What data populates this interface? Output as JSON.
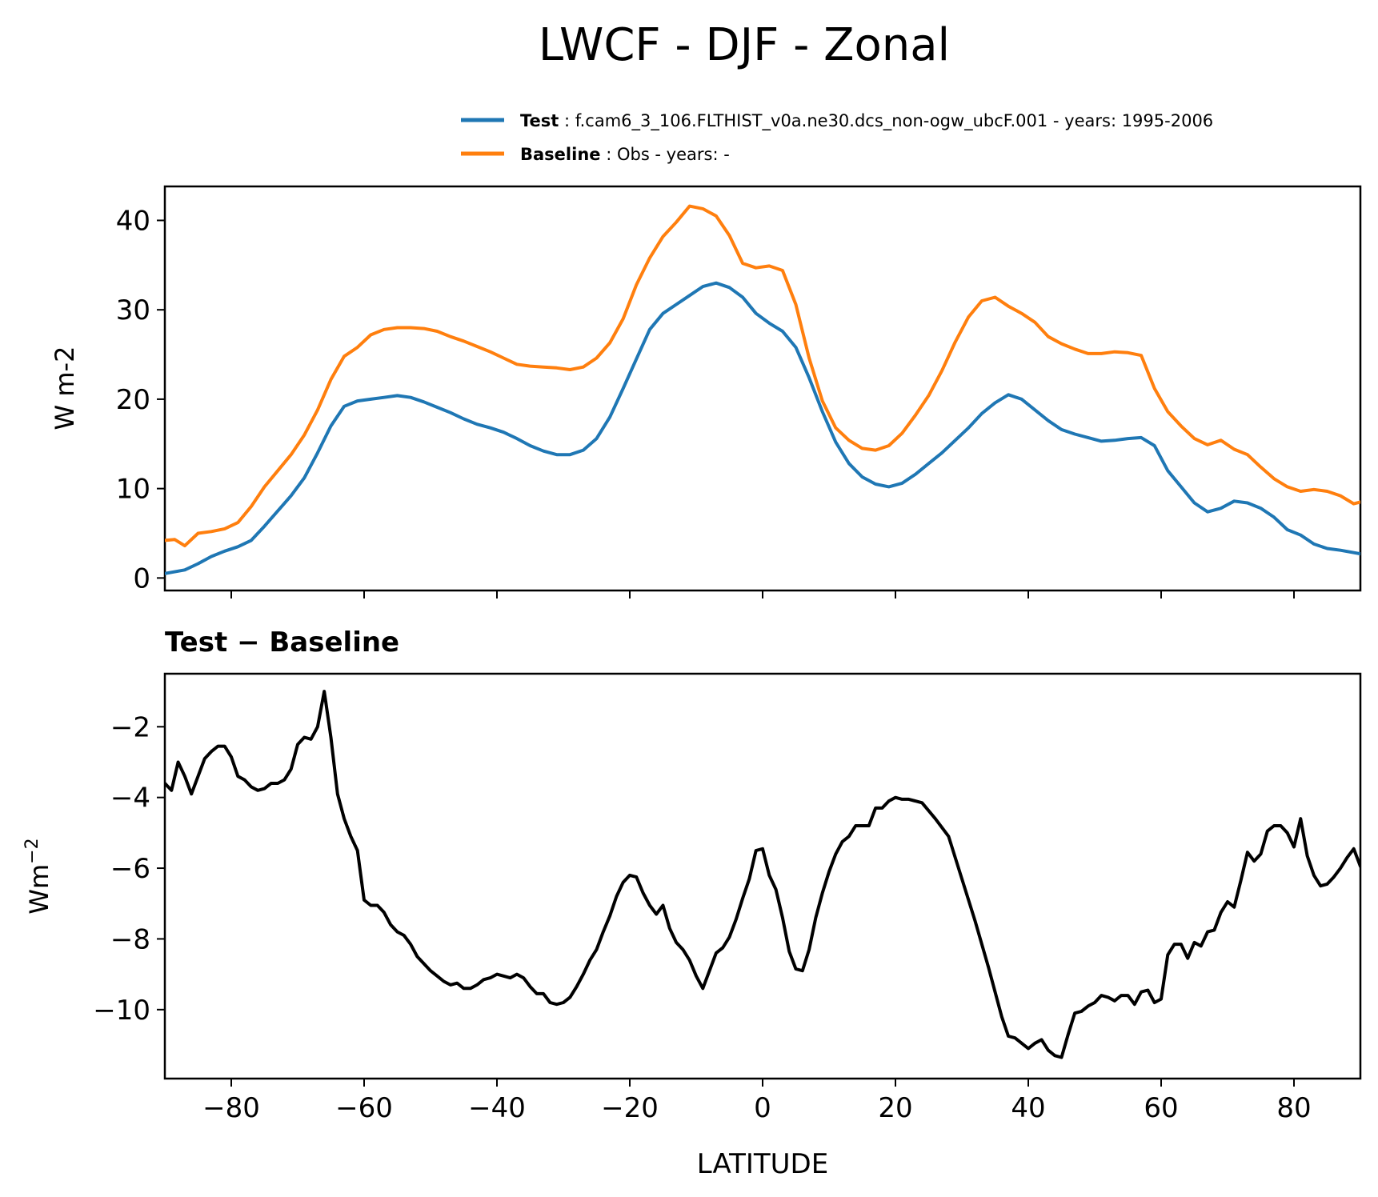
{
  "figure": {
    "title": "LWCF - DJF - Zonal"
  },
  "legend": {
    "test_label": "Test",
    "test_desc": ": f.cam6_3_106.FLTHIST_v0a.ne30.dcs_non-ogw_ubcF.001 - years: 1995-2006",
    "baseline_label": "Baseline",
    "baseline_desc": ": Obs - years: -"
  },
  "colors": {
    "test": "#1f77b4",
    "baseline": "#ff7f0e",
    "diff": "#000000"
  },
  "chart_data": [
    {
      "type": "line",
      "title": "",
      "xlabel": "",
      "ylabel": "W m-2",
      "xlim": [
        -90,
        90
      ],
      "ylim": [
        -1.4,
        43.8
      ],
      "xticks": [
        -80,
        -60,
        -40,
        -20,
        0,
        20,
        40,
        60,
        80
      ],
      "yticks": [
        0,
        10,
        20,
        30,
        40
      ],
      "ytick_labels": [
        "0",
        "10",
        "20",
        "30",
        "40"
      ],
      "series": [
        {
          "name": "Test",
          "x": [
            -90,
            -87,
            -85,
            -83,
            -81,
            -79,
            -77,
            -75,
            -73,
            -71,
            -69,
            -67,
            -65,
            -63,
            -61,
            -59,
            -57,
            -55,
            -53,
            -51,
            -49,
            -47,
            -45,
            -43,
            -41,
            -39,
            -37,
            -35,
            -33,
            -31,
            -29,
            -27,
            -25,
            -23,
            -21,
            -19,
            -17,
            -15,
            -13,
            -11,
            -9,
            -7,
            -5,
            -3,
            -1,
            1,
            3,
            5,
            7,
            9,
            11,
            13,
            15,
            17,
            19,
            21,
            23,
            25,
            27,
            29,
            31,
            33,
            35,
            37,
            39,
            41,
            43,
            45,
            47,
            49,
            51,
            53,
            55,
            57,
            59,
            61,
            63,
            65,
            67,
            69,
            71,
            73,
            75,
            77,
            79,
            81,
            83,
            85,
            87,
            90
          ],
          "values": [
            0.5,
            0.9,
            1.6,
            2.4,
            3.0,
            3.5,
            4.2,
            5.8,
            7.5,
            9.2,
            11.2,
            14.0,
            17.0,
            19.2,
            19.8,
            20.0,
            20.2,
            20.4,
            20.2,
            19.7,
            19.1,
            18.5,
            17.8,
            17.2,
            16.8,
            16.3,
            15.6,
            14.8,
            14.2,
            13.8,
            13.8,
            14.3,
            15.6,
            18.0,
            21.2,
            24.5,
            27.8,
            29.6,
            30.6,
            31.6,
            32.6,
            33.0,
            32.5,
            31.4,
            29.6,
            28.5,
            27.6,
            25.8,
            22.4,
            18.6,
            15.2,
            12.8,
            11.3,
            10.5,
            10.2,
            10.6,
            11.6,
            12.8,
            14.0,
            15.4,
            16.8,
            18.4,
            19.6,
            20.5,
            20.0,
            18.8,
            17.6,
            16.6,
            16.1,
            15.7,
            15.3,
            15.4,
            15.6,
            15.7,
            14.8,
            12.0,
            10.2,
            8.4,
            7.4,
            7.8,
            8.6,
            8.4,
            7.8,
            6.8,
            5.4,
            4.8,
            3.8,
            3.3,
            3.1,
            2.7
          ]
        },
        {
          "name": "Baseline",
          "x": [
            -90,
            -88.5,
            -87,
            -85,
            -83,
            -81,
            -79,
            -77,
            -75,
            -73,
            -71,
            -69,
            -67,
            -65,
            -63,
            -61,
            -59,
            -57,
            -55,
            -53,
            -51,
            -49,
            -47,
            -45,
            -43,
            -41,
            -39,
            -37,
            -35,
            -33,
            -31,
            -29,
            -27,
            -25,
            -23,
            -21,
            -19,
            -17,
            -15,
            -13,
            -11,
            -9,
            -7,
            -5,
            -3,
            -1,
            1,
            3,
            5,
            7,
            9,
            11,
            13,
            15,
            17,
            19,
            21,
            23,
            25,
            27,
            29,
            31,
            33,
            35,
            37,
            39,
            41,
            43,
            45,
            47,
            49,
            51,
            53,
            55,
            57,
            59,
            61,
            63,
            65,
            67,
            69,
            71,
            73,
            75,
            77,
            79,
            81,
            83,
            85,
            87,
            89,
            90
          ],
          "values": [
            4.2,
            4.3,
            3.6,
            5.0,
            5.2,
            5.5,
            6.2,
            8.0,
            10.2,
            12.0,
            13.8,
            16.0,
            18.8,
            22.2,
            24.8,
            25.8,
            27.2,
            27.8,
            28.0,
            28.0,
            27.9,
            27.6,
            27.0,
            26.5,
            25.9,
            25.3,
            24.6,
            23.9,
            23.7,
            23.6,
            23.5,
            23.3,
            23.6,
            24.6,
            26.3,
            29.0,
            32.8,
            35.8,
            38.2,
            39.8,
            41.6,
            41.3,
            40.5,
            38.3,
            35.2,
            34.7,
            34.9,
            34.4,
            30.6,
            24.6,
            19.8,
            16.8,
            15.4,
            14.5,
            14.3,
            14.8,
            16.2,
            18.2,
            20.4,
            23.2,
            26.4,
            29.2,
            31.0,
            31.4,
            30.4,
            29.6,
            28.6,
            27.0,
            26.2,
            25.6,
            25.1,
            25.1,
            25.3,
            25.2,
            24.9,
            21.2,
            18.6,
            17.0,
            15.6,
            14.9,
            15.4,
            14.4,
            13.8,
            12.4,
            11.1,
            10.2,
            9.7,
            9.9,
            9.7,
            9.2,
            8.3,
            8.5
          ]
        }
      ]
    },
    {
      "type": "line",
      "title": "Test − Baseline",
      "xlabel": "LATITUDE",
      "ylabel": "Wm",
      "ylabel_sup": "−2",
      "xlim": [
        -90,
        90
      ],
      "ylim": [
        -11.95,
        -0.5
      ],
      "xticks": [
        -80,
        -60,
        -40,
        -20,
        0,
        20,
        40,
        60,
        80
      ],
      "xtick_labels": [
        "−80",
        "−60",
        "−40",
        "−20",
        "0",
        "20",
        "40",
        "60",
        "80"
      ],
      "yticks": [
        -2,
        -4,
        -6,
        -8,
        -10
      ],
      "ytick_labels": [
        "−2",
        "−4",
        "−6",
        "−8",
        "−10"
      ],
      "series": [
        {
          "name": "Test - Baseline",
          "x": [
            -90,
            -89,
            -88,
            -87,
            -86,
            -85,
            -84,
            -83,
            -82,
            -81,
            -80,
            -79,
            -78,
            -77,
            -76,
            -75,
            -74,
            -73,
            -72,
            -71,
            -70,
            -69,
            -68,
            -67,
            -66,
            -65,
            -64,
            -63,
            -62,
            -61,
            -60,
            -59,
            -58,
            -57,
            -56,
            -55,
            -54,
            -53,
            -52,
            -51,
            -50,
            -49,
            -48,
            -47,
            -46,
            -45,
            -44,
            -43,
            -42,
            -41,
            -40,
            -39,
            -38,
            -37,
            -36,
            -35,
            -34,
            -33,
            -32,
            -31,
            -30,
            -29,
            -28,
            -27,
            -26,
            -25,
            -24,
            -23,
            -22,
            -21,
            -20,
            -19,
            -18,
            -17,
            -16,
            -15,
            -14,
            -13,
            -12,
            -11,
            -10,
            -9,
            -8,
            -7,
            -6,
            -5,
            -4,
            -3,
            -2,
            -1,
            0,
            1,
            2,
            3,
            4,
            5,
            6,
            7,
            8,
            9,
            10,
            11,
            12,
            13,
            14,
            15,
            16,
            17,
            18,
            19,
            20,
            21,
            22,
            24,
            26,
            28,
            30,
            32,
            34,
            36,
            37,
            38,
            39,
            40,
            41,
            42,
            43,
            44,
            45,
            46,
            47,
            48,
            49,
            50,
            51,
            52,
            53,
            54,
            55,
            56,
            57,
            58,
            59,
            60,
            61,
            62,
            63,
            64,
            65,
            66,
            67,
            68,
            69,
            70,
            71,
            72,
            73,
            74,
            75,
            76,
            77,
            78,
            79,
            80,
            81,
            82,
            83,
            84,
            85,
            86,
            87,
            88,
            89,
            90
          ],
          "values": [
            -3.6,
            -3.8,
            -3.0,
            -3.4,
            -3.9,
            -3.4,
            -2.9,
            -2.7,
            -2.55,
            -2.55,
            -2.85,
            -3.4,
            -3.5,
            -3.7,
            -3.8,
            -3.75,
            -3.6,
            -3.6,
            -3.5,
            -3.2,
            -2.5,
            -2.3,
            -2.35,
            -2.0,
            -1.0,
            -2.3,
            -3.9,
            -4.6,
            -5.1,
            -5.5,
            -6.9,
            -7.05,
            -7.05,
            -7.25,
            -7.6,
            -7.8,
            -7.9,
            -8.15,
            -8.5,
            -8.7,
            -8.9,
            -9.05,
            -9.2,
            -9.3,
            -9.25,
            -9.4,
            -9.4,
            -9.3,
            -9.15,
            -9.1,
            -9.0,
            -9.05,
            -9.1,
            -9.0,
            -9.1,
            -9.35,
            -9.55,
            -9.55,
            -9.8,
            -9.85,
            -9.8,
            -9.65,
            -9.35,
            -9.0,
            -8.6,
            -8.3,
            -7.8,
            -7.35,
            -6.8,
            -6.4,
            -6.2,
            -6.25,
            -6.7,
            -7.05,
            -7.3,
            -7.05,
            -7.7,
            -8.1,
            -8.3,
            -8.6,
            -9.05,
            -9.4,
            -8.9,
            -8.4,
            -8.25,
            -7.95,
            -7.45,
            -6.85,
            -6.3,
            -5.5,
            -5.45,
            -6.2,
            -6.6,
            -7.4,
            -8.35,
            -8.85,
            -8.9,
            -8.3,
            -7.4,
            -6.7,
            -6.1,
            -5.6,
            -5.25,
            -5.1,
            -4.8,
            -4.8,
            -4.8,
            -4.3,
            -4.3,
            -4.1,
            -4.0,
            -4.05,
            -4.05,
            -4.15,
            -4.6,
            -5.1,
            -6.3,
            -7.5,
            -8.8,
            -10.2,
            -10.75,
            -10.8,
            -10.95,
            -11.1,
            -10.95,
            -10.85,
            -11.15,
            -11.3,
            -11.35,
            -10.7,
            -10.1,
            -10.05,
            -9.9,
            -9.8,
            -9.6,
            -9.65,
            -9.75,
            -9.6,
            -9.6,
            -9.85,
            -9.5,
            -9.45,
            -9.8,
            -9.7,
            -8.45,
            -8.15,
            -8.15,
            -8.55,
            -8.1,
            -8.2,
            -7.8,
            -7.75,
            -7.25,
            -6.95,
            -7.1,
            -6.35,
            -5.55,
            -5.8,
            -5.6,
            -4.95,
            -4.8,
            -4.8,
            -5.0,
            -5.4,
            -4.6,
            -5.65,
            -6.2,
            -6.5,
            -6.45,
            -6.25,
            -6.0,
            -5.7,
            -5.45,
            -5.95
          ]
        }
      ]
    }
  ]
}
